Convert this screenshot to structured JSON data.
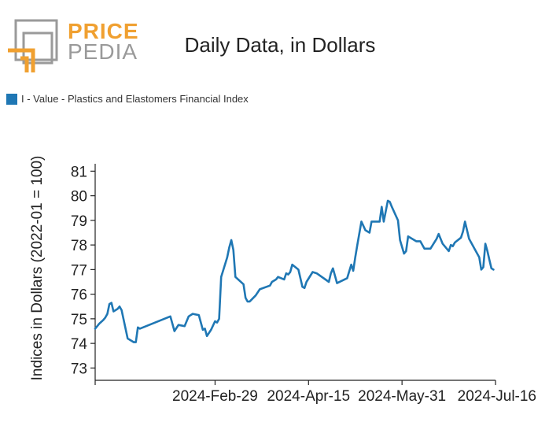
{
  "header": {
    "brand_top": "PRICE",
    "brand_bottom": "PEDIA",
    "title": "Daily Data, in Dollars"
  },
  "colors": {
    "series": "#1f77b4",
    "brand_orange": "#f0a030",
    "brand_gray": "#9a9a9a"
  },
  "chart_data": {
    "type": "line",
    "title": "Daily Data, in Dollars",
    "xlabel": "",
    "ylabel": "Indices in Dollars (2022-01 = 100)",
    "ylim": [
      72.5,
      81.3
    ],
    "yticks": [
      73,
      74,
      75,
      76,
      77,
      78,
      79,
      80,
      81
    ],
    "xlim": [
      "2024-01-01",
      "2024-07-16"
    ],
    "xticks": [
      "2024-Feb-29",
      "2024-Apr-15",
      "2024-May-31",
      "2024-Jul-16"
    ],
    "grid": false,
    "legend_position": "top-left",
    "series": [
      {
        "name": "I - Value - Plastics and Elastomers Financial Index",
        "color": "#1f77b4",
        "points": [
          [
            "2024-01-01",
            74.6
          ],
          [
            "2024-01-03",
            74.8
          ],
          [
            "2024-01-05",
            74.95
          ],
          [
            "2024-01-06",
            75.05
          ],
          [
            "2024-01-07",
            75.2
          ],
          [
            "2024-01-08",
            75.6
          ],
          [
            "2024-01-09",
            75.65
          ],
          [
            "2024-01-10",
            75.3
          ],
          [
            "2024-01-12",
            75.4
          ],
          [
            "2024-01-13",
            75.5
          ],
          [
            "2024-01-14",
            75.35
          ],
          [
            "2024-01-17",
            74.2
          ],
          [
            "2024-01-20",
            74.05
          ],
          [
            "2024-01-21",
            74.05
          ],
          [
            "2024-01-22",
            74.65
          ],
          [
            "2024-01-23",
            74.6
          ],
          [
            "2024-02-07",
            75.1
          ],
          [
            "2024-02-09",
            74.5
          ],
          [
            "2024-02-11",
            74.75
          ],
          [
            "2024-02-14",
            74.7
          ],
          [
            "2024-02-16",
            75.1
          ],
          [
            "2024-02-18",
            75.2
          ],
          [
            "2024-02-21",
            75.15
          ],
          [
            "2024-02-23",
            74.55
          ],
          [
            "2024-02-24",
            74.6
          ],
          [
            "2024-02-25",
            74.3
          ],
          [
            "2024-02-27",
            74.55
          ],
          [
            "2024-02-29",
            74.9
          ],
          [
            "2024-03-01",
            74.85
          ],
          [
            "2024-03-02",
            75.0
          ],
          [
            "2024-03-03",
            76.7
          ],
          [
            "2024-03-06",
            77.5
          ],
          [
            "2024-03-07",
            77.9
          ],
          [
            "2024-03-08",
            78.2
          ],
          [
            "2024-03-09",
            77.8
          ],
          [
            "2024-03-10",
            76.7
          ],
          [
            "2024-03-14",
            76.4
          ],
          [
            "2024-03-15",
            75.85
          ],
          [
            "2024-03-16",
            75.7
          ],
          [
            "2024-03-17",
            75.7
          ],
          [
            "2024-03-20",
            75.95
          ],
          [
            "2024-03-22",
            76.2
          ],
          [
            "2024-03-27",
            76.35
          ],
          [
            "2024-03-28",
            76.5
          ],
          [
            "2024-03-30",
            76.6
          ],
          [
            "2024-03-31",
            76.7
          ],
          [
            "2024-04-03",
            76.6
          ],
          [
            "2024-04-04",
            76.85
          ],
          [
            "2024-04-05",
            76.8
          ],
          [
            "2024-04-06",
            76.9
          ],
          [
            "2024-04-07",
            77.2
          ],
          [
            "2024-04-10",
            77.0
          ],
          [
            "2024-04-12",
            76.3
          ],
          [
            "2024-04-13",
            76.25
          ],
          [
            "2024-04-14",
            76.5
          ],
          [
            "2024-04-17",
            76.9
          ],
          [
            "2024-04-19",
            76.85
          ],
          [
            "2024-04-25",
            76.5
          ],
          [
            "2024-04-26",
            76.85
          ],
          [
            "2024-04-27",
            77.05
          ],
          [
            "2024-04-28",
            76.75
          ],
          [
            "2024-04-29",
            76.45
          ],
          [
            "2024-05-04",
            76.65
          ],
          [
            "2024-05-06",
            77.2
          ],
          [
            "2024-05-07",
            76.95
          ],
          [
            "2024-05-08",
            77.5
          ],
          [
            "2024-05-09",
            78.0
          ],
          [
            "2024-05-11",
            78.95
          ],
          [
            "2024-05-13",
            78.6
          ],
          [
            "2024-05-15",
            78.5
          ],
          [
            "2024-05-16",
            78.95
          ],
          [
            "2024-05-20",
            78.95
          ],
          [
            "2024-05-21",
            79.55
          ],
          [
            "2024-05-22",
            78.95
          ],
          [
            "2024-05-24",
            79.8
          ],
          [
            "2024-05-25",
            79.75
          ],
          [
            "2024-05-26",
            79.55
          ],
          [
            "2024-05-29",
            79.0
          ],
          [
            "2024-05-30",
            78.2
          ],
          [
            "2024-06-01",
            77.65
          ],
          [
            "2024-06-02",
            77.75
          ],
          [
            "2024-06-03",
            78.35
          ],
          [
            "2024-06-07",
            78.15
          ],
          [
            "2024-06-09",
            78.15
          ],
          [
            "2024-06-11",
            77.85
          ],
          [
            "2024-06-14",
            77.85
          ],
          [
            "2024-06-17",
            78.25
          ],
          [
            "2024-06-18",
            78.45
          ],
          [
            "2024-06-20",
            78.05
          ],
          [
            "2024-06-23",
            77.75
          ],
          [
            "2024-06-24",
            78.0
          ],
          [
            "2024-06-25",
            77.95
          ],
          [
            "2024-06-26",
            78.1
          ],
          [
            "2024-06-29",
            78.3
          ],
          [
            "2024-06-30",
            78.55
          ],
          [
            "2024-07-01",
            78.95
          ],
          [
            "2024-07-03",
            78.25
          ],
          [
            "2024-07-05",
            77.95
          ],
          [
            "2024-07-08",
            77.5
          ],
          [
            "2024-07-09",
            77.0
          ],
          [
            "2024-07-10",
            77.1
          ],
          [
            "2024-07-11",
            78.05
          ],
          [
            "2024-07-12",
            77.75
          ],
          [
            "2024-07-13",
            77.4
          ],
          [
            "2024-07-14",
            77.05
          ],
          [
            "2024-07-15",
            77.0
          ]
        ]
      }
    ]
  }
}
